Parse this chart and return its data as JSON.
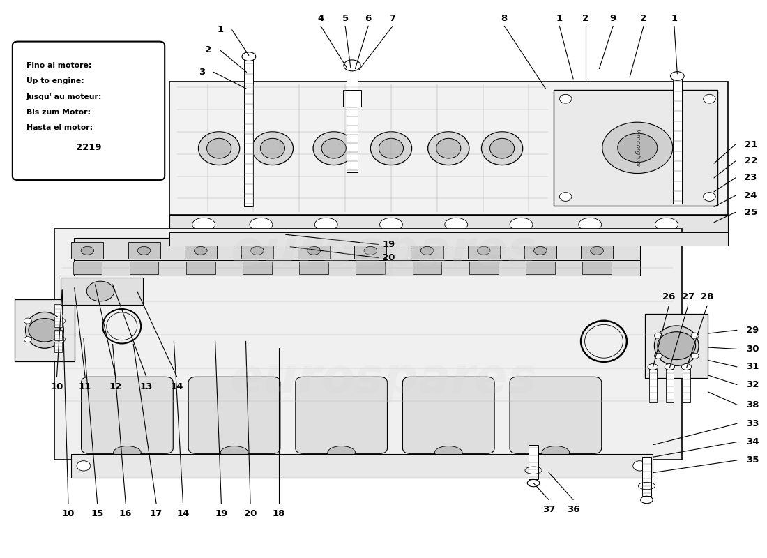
{
  "background_color": "#ffffff",
  "watermark_text": "eurospares",
  "info_box_lines": [
    "Fino al motore:",
    "Up to engine:",
    "Jusqu' au moteur:",
    "Bis zum Motor:",
    "Hasta el motor:",
    "2219"
  ]
}
